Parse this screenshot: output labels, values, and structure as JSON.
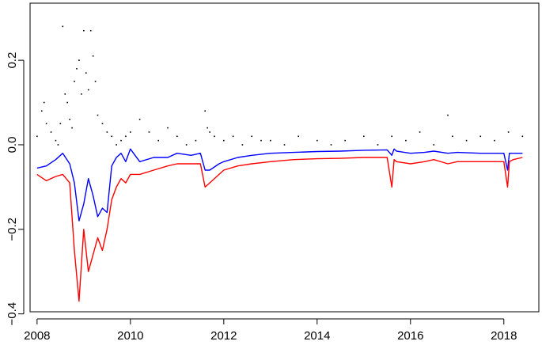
{
  "chart_data": {
    "type": "line",
    "title": "",
    "xlabel": "",
    "ylabel": "",
    "xlim": [
      2007.85,
      2018.75
    ],
    "ylim": [
      -0.395,
      0.335
    ],
    "x_ticks": [
      2008,
      2010,
      2012,
      2014,
      2016,
      2018
    ],
    "x_tick_labels": [
      "2008",
      "2010",
      "2012",
      "2014",
      "2016",
      "2018"
    ],
    "y_ticks": [
      -0.4,
      -0.2,
      0.0,
      0.2
    ],
    "y_tick_labels": [
      "−0.4",
      "−0.2",
      "0.0",
      "0.2"
    ],
    "grid": false,
    "legend": "none",
    "series": [
      {
        "color": "#0000ff",
        "style": "line",
        "x": [
          2008.0,
          2008.2,
          2008.4,
          2008.55,
          2008.7,
          2008.8,
          2008.9,
          2009.0,
          2009.1,
          2009.2,
          2009.3,
          2009.4,
          2009.5,
          2009.6,
          2009.7,
          2009.8,
          2009.9,
          2010.0,
          2010.2,
          2010.5,
          2010.8,
          2011.0,
          2011.3,
          2011.5,
          2011.6,
          2011.7,
          2011.9,
          2012.0,
          2012.3,
          2012.6,
          2013.0,
          2013.5,
          2014.0,
          2014.5,
          2015.0,
          2015.5,
          2015.6,
          2015.65,
          2015.7,
          2016.0,
          2016.3,
          2016.5,
          2016.8,
          2017.0,
          2017.5,
          2018.0,
          2018.08,
          2018.12,
          2018.2,
          2018.4
        ],
        "y": [
          -0.055,
          -0.05,
          -0.035,
          -0.02,
          -0.045,
          -0.09,
          -0.18,
          -0.14,
          -0.08,
          -0.12,
          -0.17,
          -0.15,
          -0.16,
          -0.05,
          -0.03,
          -0.02,
          -0.04,
          -0.01,
          -0.04,
          -0.03,
          -0.03,
          -0.02,
          -0.025,
          -0.02,
          -0.06,
          -0.06,
          -0.045,
          -0.04,
          -0.03,
          -0.025,
          -0.02,
          -0.018,
          -0.016,
          -0.015,
          -0.013,
          -0.012,
          -0.025,
          -0.01,
          -0.015,
          -0.02,
          -0.018,
          -0.015,
          -0.02,
          -0.018,
          -0.02,
          -0.02,
          -0.06,
          -0.02,
          -0.02,
          -0.02
        ]
      },
      {
        "color": "#ff0000",
        "style": "line",
        "x": [
          2008.0,
          2008.2,
          2008.4,
          2008.55,
          2008.7,
          2008.8,
          2008.9,
          2009.0,
          2009.1,
          2009.2,
          2009.3,
          2009.4,
          2009.5,
          2009.6,
          2009.7,
          2009.8,
          2009.9,
          2010.0,
          2010.2,
          2010.5,
          2010.8,
          2011.0,
          2011.3,
          2011.5,
          2011.6,
          2011.7,
          2011.9,
          2012.0,
          2012.3,
          2012.6,
          2013.0,
          2013.5,
          2014.0,
          2014.5,
          2015.0,
          2015.5,
          2015.6,
          2015.65,
          2015.7,
          2016.0,
          2016.3,
          2016.5,
          2016.8,
          2017.0,
          2017.5,
          2018.0,
          2018.08,
          2018.12,
          2018.2,
          2018.4
        ],
        "y": [
          -0.07,
          -0.085,
          -0.075,
          -0.07,
          -0.09,
          -0.25,
          -0.37,
          -0.2,
          -0.3,
          -0.26,
          -0.22,
          -0.25,
          -0.2,
          -0.13,
          -0.1,
          -0.08,
          -0.09,
          -0.07,
          -0.07,
          -0.06,
          -0.05,
          -0.045,
          -0.045,
          -0.045,
          -0.1,
          -0.09,
          -0.07,
          -0.06,
          -0.05,
          -0.045,
          -0.04,
          -0.035,
          -0.033,
          -0.032,
          -0.03,
          -0.03,
          -0.1,
          -0.035,
          -0.04,
          -0.045,
          -0.04,
          -0.035,
          -0.045,
          -0.04,
          -0.04,
          -0.04,
          -0.1,
          -0.04,
          -0.035,
          -0.03
        ]
      },
      {
        "color": "#000000",
        "style": "points",
        "x": [
          2008.0,
          2008.1,
          2008.15,
          2008.2,
          2008.3,
          2008.4,
          2008.45,
          2008.5,
          2008.55,
          2008.6,
          2008.65,
          2008.7,
          2008.75,
          2008.8,
          2008.85,
          2008.9,
          2008.95,
          2009.0,
          2009.05,
          2009.1,
          2009.15,
          2009.2,
          2009.25,
          2009.3,
          2009.4,
          2009.5,
          2009.6,
          2009.7,
          2009.8,
          2009.9,
          2010.0,
          2010.2,
          2010.4,
          2010.6,
          2010.8,
          2011.0,
          2011.2,
          2011.4,
          2011.6,
          2011.65,
          2011.7,
          2011.8,
          2012.0,
          2012.2,
          2012.4,
          2012.6,
          2012.8,
          2013.0,
          2013.3,
          2013.6,
          2014.0,
          2014.3,
          2014.6,
          2015.0,
          2015.3,
          2015.6,
          2015.9,
          2016.2,
          2016.5,
          2016.8,
          2016.9,
          2017.2,
          2017.5,
          2017.8,
          2018.1,
          2018.4
        ],
        "y": [
          0.02,
          0.08,
          0.1,
          0.05,
          0.03,
          0.01,
          0.0,
          0.05,
          0.28,
          0.12,
          0.1,
          0.06,
          0.04,
          0.15,
          0.18,
          0.2,
          0.12,
          0.27,
          0.17,
          0.13,
          0.27,
          0.21,
          0.15,
          0.07,
          0.05,
          0.03,
          0.02,
          0.0,
          0.01,
          0.02,
          0.03,
          0.06,
          0.03,
          0.01,
          0.04,
          0.02,
          0.0,
          0.01,
          0.08,
          0.04,
          0.03,
          0.02,
          0.01,
          0.02,
          0.0,
          0.02,
          0.01,
          0.01,
          0.0,
          0.02,
          0.01,
          0.0,
          0.01,
          0.02,
          0.0,
          0.02,
          0.01,
          0.03,
          0.0,
          0.07,
          0.02,
          0.01,
          0.02,
          0.01,
          0.03,
          0.02
        ]
      }
    ]
  }
}
